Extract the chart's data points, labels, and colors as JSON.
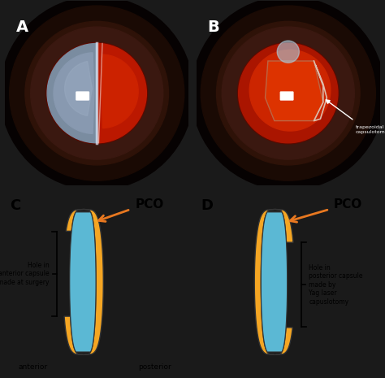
{
  "panel_labels": [
    "A",
    "B",
    "C",
    "D"
  ],
  "pco_label": "PCO",
  "arrow_color": "#E87820",
  "lens_blue": "#5BB8D4",
  "capsule_color": "#F5A623",
  "capsule_outline": "#333333",
  "text_color": "black",
  "label_C_text": "Hole in\nanterior capsule\nmade at surgery",
  "label_D_text": "Hole in\nposterior capsule\nmade by\nYag laser\ncapuslotomy",
  "anterior_label": "anterior",
  "posterior_label": "posterior",
  "trapezoid_label": "trapezoidal\ncapsulotomy",
  "fig_bg": "#1a1a1a",
  "photo_bg": "#0a0505",
  "iris_color": "#2a1505",
  "iris_inner": "#3d1a08",
  "pupil_dark": "#5a0800",
  "pupil_red": "#990000",
  "pupil_bright": "#cc2200",
  "opac_color": "#8899bb",
  "white_reflex": "#ffffff",
  "diagram_bg": "#ffffff",
  "border_color": "#555555"
}
